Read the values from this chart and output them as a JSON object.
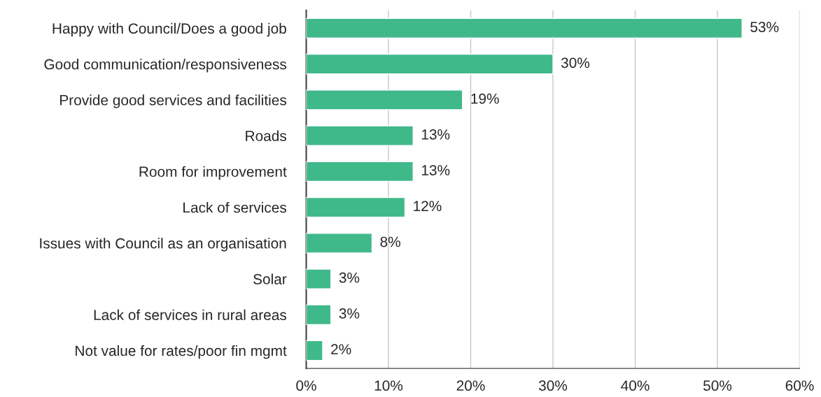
{
  "chart_data": {
    "type": "bar",
    "orientation": "horizontal",
    "categories": [
      "Happy with Council/Does a good job",
      "Good communication/responsiveness",
      "Provide good services and facilities",
      "Roads",
      "Room for improvement",
      "Lack of services",
      "Issues with Council as an organisation",
      "Solar",
      "Lack of services in rural areas",
      "Not value for rates/poor fin mgmt"
    ],
    "values": [
      53,
      30,
      19,
      13,
      13,
      12,
      8,
      3,
      3,
      2
    ],
    "value_labels": [
      "53%",
      "30%",
      "19%",
      "13%",
      "13%",
      "12%",
      "8%",
      "3%",
      "3%",
      "2%"
    ],
    "color": "#40b98a",
    "xlim": [
      0,
      60
    ],
    "xticks": [
      {
        "value": 0,
        "label": "0%"
      },
      {
        "value": 10,
        "label": "10%"
      },
      {
        "value": 20,
        "label": "20%"
      },
      {
        "value": 30,
        "label": "30%"
      },
      {
        "value": 40,
        "label": "40%"
      },
      {
        "value": 50,
        "label": "50%"
      },
      {
        "value": 60,
        "label": "60%"
      }
    ],
    "grid": "x",
    "legend": false
  }
}
